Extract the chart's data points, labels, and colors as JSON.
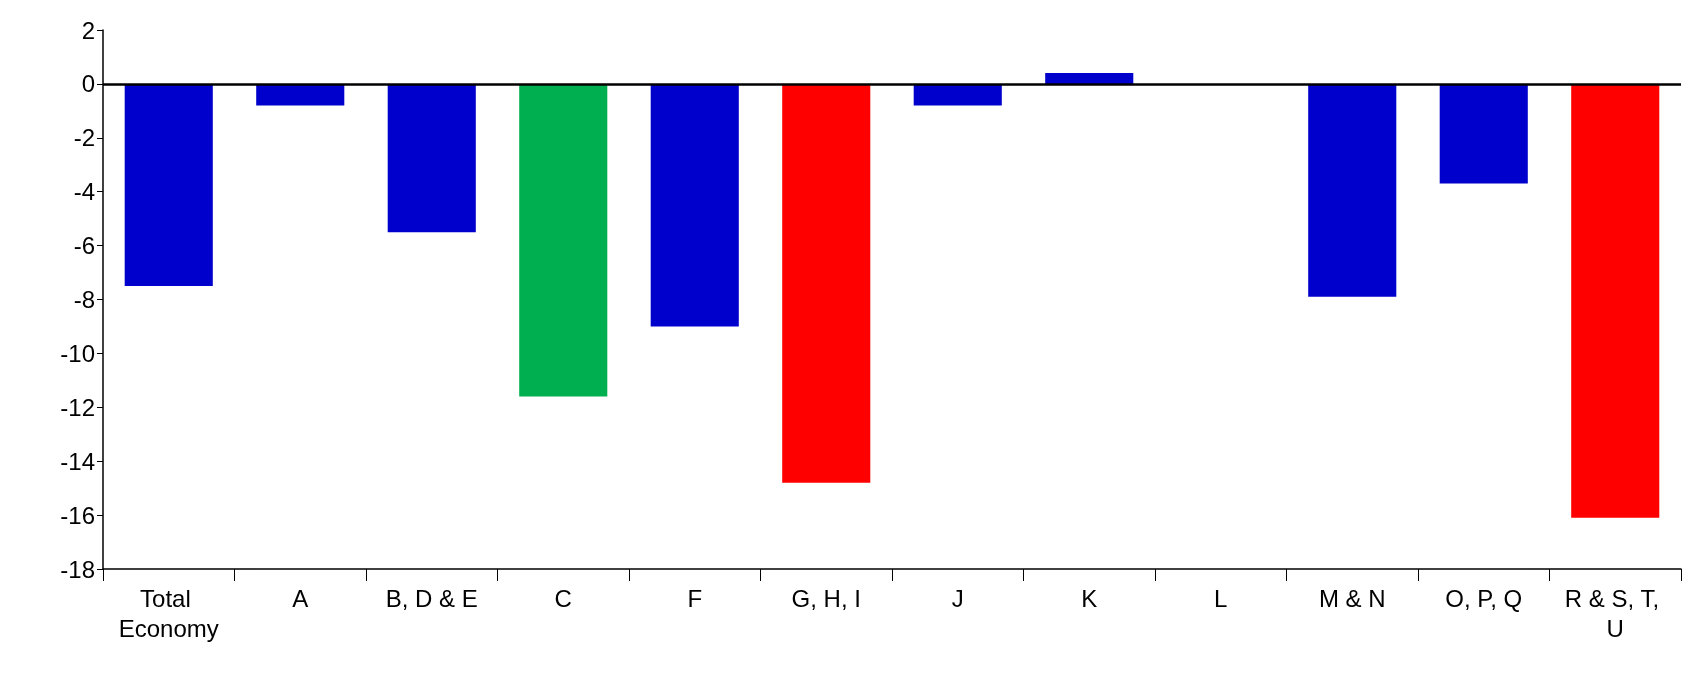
{
  "chart_data": {
    "type": "bar",
    "categories": [
      "Total Economy",
      "A",
      "B, D & E",
      "C",
      "F",
      "G, H, I",
      "J",
      "K",
      "L",
      "M & N",
      "O, P, Q",
      "R & S, T, U"
    ],
    "values": [
      -7.5,
      -0.8,
      -5.5,
      -11.6,
      -9.0,
      -14.8,
      -0.8,
      0.4,
      0,
      -7.9,
      -3.7,
      -16.1
    ],
    "colors": [
      "#0000cc",
      "#0000cc",
      "#0000cc",
      "#00b050",
      "#0000cc",
      "#ff0000",
      "#0000cc",
      "#0000cc",
      "#0000cc",
      "#0000cc",
      "#0000cc",
      "#ff0000"
    ],
    "ylim": [
      -18,
      2
    ],
    "yticks": [
      -18,
      -16,
      -14,
      -12,
      -10,
      -8,
      -6,
      -4,
      -2,
      0,
      2
    ],
    "ref_lines": [
      {
        "axis": "y",
        "value": 0,
        "color": "#000000"
      }
    ],
    "grid": false
  }
}
